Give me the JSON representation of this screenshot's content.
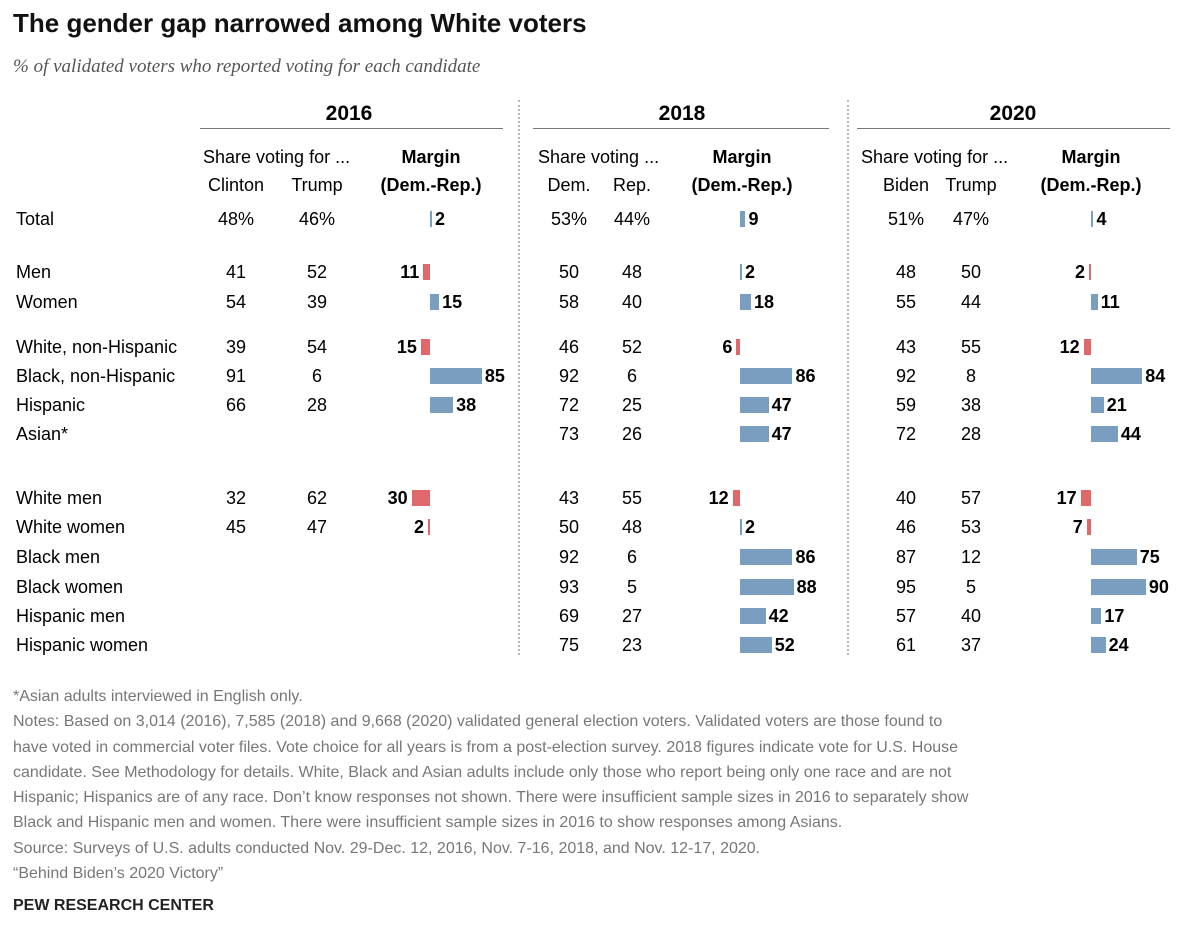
{
  "title": "The gender gap narrowed among White voters",
  "subtitle": "% of validated voters who reported voting for each candidate",
  "chart_data": {
    "type": "table",
    "columns": [
      "Share voting for ...",
      "Margin (Dem.-Rep.)"
    ],
    "years": [
      {
        "year": "2016",
        "share_header": "Share voting for ...",
        "col1": "Clinton",
        "col2": "Trump",
        "margin_header_1": "Margin",
        "margin_header_2": "(Dem.-Rep.)"
      },
      {
        "year": "2018",
        "share_header": "Share voting ...",
        "col1": "Dem.",
        "col2": "Rep.",
        "margin_header_1": "Margin",
        "margin_header_2": "(Dem.-Rep.)"
      },
      {
        "year": "2020",
        "share_header": "Share voting for ...",
        "col1": "Biden",
        "col2": "Trump",
        "margin_header_1": "Margin",
        "margin_header_2": "(Dem.-Rep.)"
      }
    ],
    "rows": [
      {
        "label": "Total",
        "values": [
          {
            "a": "48%",
            "b": "46%",
            "margin": 2,
            "margin_label": "2"
          },
          {
            "a": "53%",
            "b": "44%",
            "margin": 9,
            "margin_label": "9"
          },
          {
            "a": "51%",
            "b": "47%",
            "margin": 4,
            "margin_label": "4"
          }
        ]
      },
      {
        "label": "Men",
        "values": [
          {
            "a": "41",
            "b": "52",
            "margin": -11,
            "margin_label": "11"
          },
          {
            "a": "50",
            "b": "48",
            "margin": 2,
            "margin_label": "2"
          },
          {
            "a": "48",
            "b": "50",
            "margin": -2,
            "margin_label": "2"
          }
        ]
      },
      {
        "label": "Women",
        "values": [
          {
            "a": "54",
            "b": "39",
            "margin": 15,
            "margin_label": "15"
          },
          {
            "a": "58",
            "b": "40",
            "margin": 18,
            "margin_label": "18"
          },
          {
            "a": "55",
            "b": "44",
            "margin": 11,
            "margin_label": "11"
          }
        ]
      },
      {
        "label": "White, non-Hispanic",
        "values": [
          {
            "a": "39",
            "b": "54",
            "margin": -15,
            "margin_label": "15"
          },
          {
            "a": "46",
            "b": "52",
            "margin": -6,
            "margin_label": "6"
          },
          {
            "a": "43",
            "b": "55",
            "margin": -12,
            "margin_label": "12"
          }
        ]
      },
      {
        "label": "Black, non-Hispanic",
        "values": [
          {
            "a": "91",
            "b": "6",
            "margin": 85,
            "margin_label": "85"
          },
          {
            "a": "92",
            "b": "6",
            "margin": 86,
            "margin_label": "86"
          },
          {
            "a": "92",
            "b": "8",
            "margin": 84,
            "margin_label": "84"
          }
        ]
      },
      {
        "label": "Hispanic",
        "values": [
          {
            "a": "66",
            "b": "28",
            "margin": 38,
            "margin_label": "38"
          },
          {
            "a": "72",
            "b": "25",
            "margin": 47,
            "margin_label": "47"
          },
          {
            "a": "59",
            "b": "38",
            "margin": 21,
            "margin_label": "21"
          }
        ]
      },
      {
        "label": "Asian*",
        "values": [
          null,
          {
            "a": "73",
            "b": "26",
            "margin": 47,
            "margin_label": "47"
          },
          {
            "a": "72",
            "b": "28",
            "margin": 44,
            "margin_label": "44"
          }
        ]
      },
      {
        "label": "White men",
        "values": [
          {
            "a": "32",
            "b": "62",
            "margin": -30,
            "margin_label": "30"
          },
          {
            "a": "43",
            "b": "55",
            "margin": -12,
            "margin_label": "12"
          },
          {
            "a": "40",
            "b": "57",
            "margin": -17,
            "margin_label": "17"
          }
        ]
      },
      {
        "label": "White women",
        "values": [
          {
            "a": "45",
            "b": "47",
            "margin": -2,
            "margin_label": "2"
          },
          {
            "a": "50",
            "b": "48",
            "margin": 2,
            "margin_label": "2"
          },
          {
            "a": "46",
            "b": "53",
            "margin": -7,
            "margin_label": "7"
          }
        ]
      },
      {
        "label": "Black men",
        "values": [
          null,
          {
            "a": "92",
            "b": "6",
            "margin": 86,
            "margin_label": "86"
          },
          {
            "a": "87",
            "b": "12",
            "margin": 75,
            "margin_label": "75"
          }
        ]
      },
      {
        "label": "Black women",
        "values": [
          null,
          {
            "a": "93",
            "b": "5",
            "margin": 88,
            "margin_label": "88"
          },
          {
            "a": "95",
            "b": "5",
            "margin": 90,
            "margin_label": "90"
          }
        ]
      },
      {
        "label": "Hispanic men",
        "values": [
          null,
          {
            "a": "69",
            "b": "27",
            "margin": 42,
            "margin_label": "42"
          },
          {
            "a": "57",
            "b": "40",
            "margin": 17,
            "margin_label": "17"
          }
        ]
      },
      {
        "label": "Hispanic women",
        "values": [
          null,
          {
            "a": "75",
            "b": "23",
            "margin": 52,
            "margin_label": "52"
          },
          {
            "a": "61",
            "b": "37",
            "margin": 24,
            "margin_label": "24"
          }
        ]
      }
    ],
    "colors": {
      "democratic_margin": "#7a9ebf",
      "republican_margin": "#e0686a"
    }
  },
  "footnotes": [
    "*Asian adults interviewed in English only.",
    "Notes: Based on 3,014 (2016), 7,585 (2018) and 9,668 (2020) validated general election voters. Validated voters are those found to",
    "have voted in commercial voter files. Vote choice for all years is from a post-election survey. 2018 figures indicate vote for U.S. House",
    "candidate. See Methodology for details. White, Black and Asian adults include only those who report being only one race and are not",
    "Hispanic; Hispanics are of any race. Don’t know responses not shown. There were insufficient sample sizes in 2016 to separately show",
    "Black and Hispanic men and women. There were insufficient sample sizes in 2016 to show responses among Asians.",
    "Source: Surveys of U.S. adults conducted Nov. 29-Dec. 12, 2016, Nov. 7-16, 2018, and Nov. 12-17, 2020.",
    "“Behind Biden’s 2020 Victory”"
  ],
  "brand": "PEW RESEARCH CENTER"
}
